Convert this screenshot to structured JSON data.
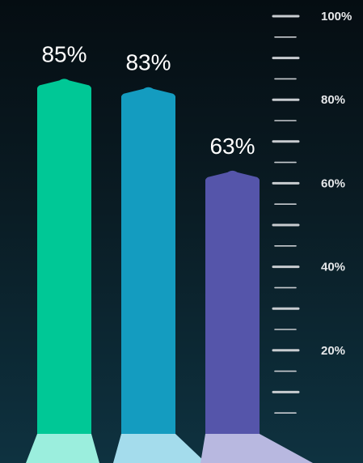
{
  "chart_data": {
    "type": "bar",
    "categories": [
      "",
      "",
      ""
    ],
    "values": [
      85,
      83,
      63
    ],
    "value_labels": [
      "85%",
      "83%",
      "63%"
    ],
    "title": "",
    "xlabel": "",
    "ylabel": "",
    "ylim": [
      0,
      100
    ],
    "y_ticks": [
      {
        "value": 100,
        "label": "100%"
      },
      {
        "value": 80,
        "label": "80%"
      },
      {
        "value": 60,
        "label": "60%"
      },
      {
        "value": 40,
        "label": "40%"
      },
      {
        "value": 20,
        "label": "20%"
      }
    ],
    "minor_tick_step": 5,
    "grid": false,
    "legend": "none",
    "colors": {
      "bars": [
        "#00c896",
        "#149cc0",
        "#5555aa"
      ],
      "shadows": [
        "#9beedd",
        "#a4dcec",
        "#b8b8e0"
      ],
      "tick": "#c8ccd0"
    }
  }
}
